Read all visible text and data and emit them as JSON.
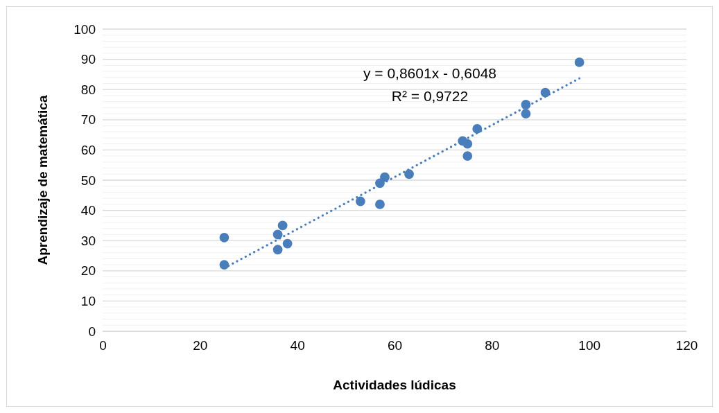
{
  "chart_data": {
    "type": "scatter",
    "xlabel": "Actividades lúdicas",
    "ylabel": "Aprendizaje de matemática",
    "xlim": [
      0,
      120
    ],
    "xticks": [
      0,
      20,
      40,
      60,
      80,
      100,
      120
    ],
    "ylim": [
      0,
      100
    ],
    "yticks": [
      0,
      {
        "value": 2,
        "label": null
      },
      {
        "value": 4,
        "label": null
      },
      {
        "value": 6,
        "label": null
      },
      {
        "value": 8,
        "label": null
      },
      10,
      {
        "value": 12,
        "label": null
      },
      {
        "value": 14,
        "label": null
      },
      {
        "value": 16,
        "label": null
      },
      {
        "value": 18,
        "label": null
      },
      20,
      {
        "value": 22,
        "label": null
      },
      {
        "value": 24,
        "label": null
      },
      {
        "value": 26,
        "label": null
      },
      {
        "value": 28,
        "label": null
      },
      30,
      {
        "value": 32,
        "label": null
      },
      {
        "value": 34,
        "label": null
      },
      {
        "value": 36,
        "label": null
      },
      {
        "value": 38,
        "label": null
      },
      40,
      {
        "value": 42,
        "label": null
      },
      {
        "value": 44,
        "label": null
      },
      {
        "value": 46,
        "label": null
      },
      {
        "value": 48,
        "label": null
      },
      50,
      {
        "value": 52,
        "label": null
      },
      {
        "value": 54,
        "label": null
      },
      {
        "value": 56,
        "label": null
      },
      {
        "value": 58,
        "label": null
      },
      60,
      {
        "value": 62,
        "label": null
      },
      {
        "value": 64,
        "label": null
      },
      {
        "value": 66,
        "label": null
      },
      {
        "value": 68,
        "label": null
      },
      70,
      {
        "value": 72,
        "label": null
      },
      {
        "value": 74,
        "label": null
      },
      {
        "value": 76,
        "label": null
      },
      {
        "value": 78,
        "label": null
      },
      80,
      {
        "value": 82,
        "label": null
      },
      {
        "value": 84,
        "label": null
      },
      {
        "value": 86,
        "label": null
      },
      {
        "value": 88,
        "label": null
      },
      90,
      {
        "value": 92,
        "label": null
      },
      {
        "value": 94,
        "label": null
      },
      {
        "value": 96,
        "label": null
      },
      {
        "value": 98,
        "label": null
      },
      100
    ],
    "grid": "y",
    "annotations": [
      "y = 0,8601x - 0,6048",
      "R² = 0,9722"
    ],
    "series": [
      {
        "marker": "circle",
        "color": "#4a7ebb",
        "x": [
          25,
          25,
          36,
          36,
          37,
          38,
          53,
          57,
          57,
          58,
          63,
          74,
          75,
          75,
          77,
          87,
          87,
          91,
          98
        ],
        "values": [
          31,
          22,
          32,
          27,
          35,
          29,
          43,
          49,
          42,
          51,
          52,
          63,
          62,
          58,
          67,
          75,
          72,
          79,
          89
        ]
      },
      {
        "type": "line",
        "marker": "none",
        "line_style": "dotted",
        "color": "#4a7ebb",
        "x": [
          25,
          98
        ],
        "values": [
          20.9,
          83.7
        ]
      }
    ]
  }
}
